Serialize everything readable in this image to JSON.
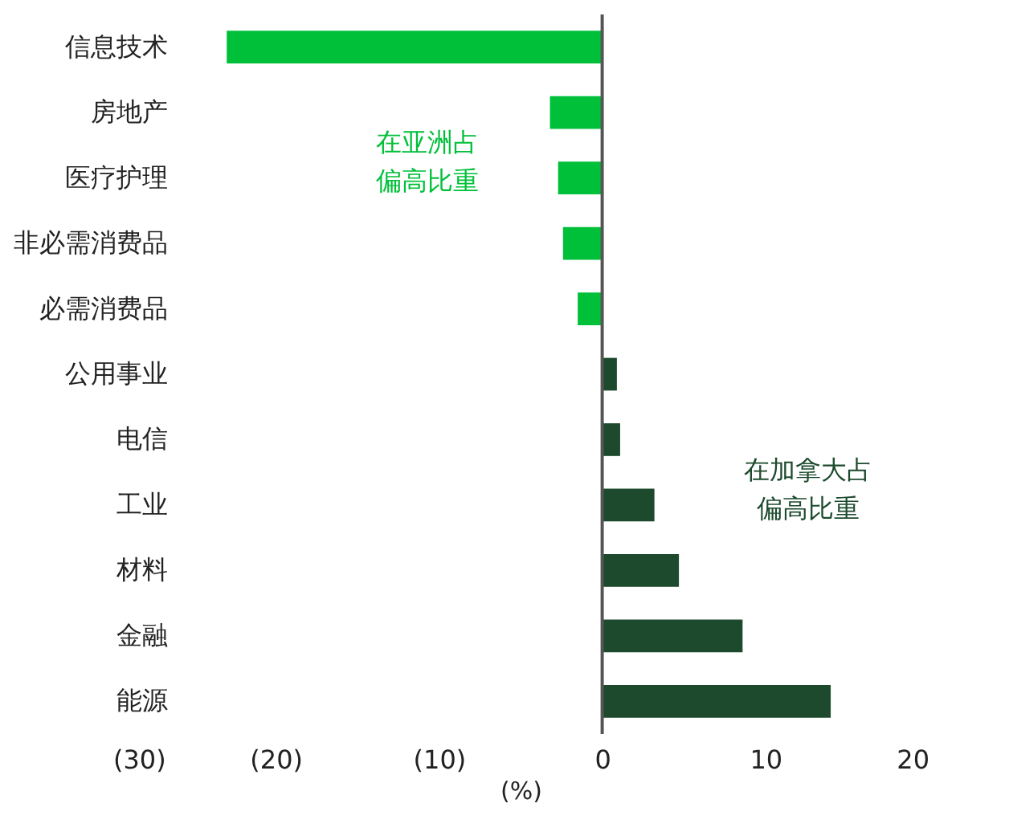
{
  "chart_data": {
    "type": "bar",
    "orientation": "horizontal",
    "xlabel": "(%)",
    "categories": [
      "信息技术",
      "房地产",
      "医疗护理",
      "非必需消费品",
      "必需消费品",
      "公用事业",
      "电信",
      "工业",
      "材料",
      "金融",
      "能源"
    ],
    "values": [
      -23,
      -3.2,
      -2.7,
      -2.4,
      -1.5,
      0.9,
      1.1,
      3.2,
      4.7,
      8.6,
      14.0
    ],
    "colors": [
      "#00c03a",
      "#00c03a",
      "#00c03a",
      "#00c03a",
      "#00c03a",
      "#1d4a2d",
      "#1d4a2d",
      "#1d4a2d",
      "#1d4a2d",
      "#1d4a2d",
      "#1d4a2d"
    ],
    "xlim": [
      -30,
      20
    ],
    "xticks": [
      {
        "value": -30,
        "label": "(30)"
      },
      {
        "value": -20,
        "label": "(20)"
      },
      {
        "value": -10,
        "label": "(10)"
      },
      0,
      10,
      20
    ],
    "ref_lines": [
      {
        "axis": "x",
        "value": 0,
        "color": "#555555"
      }
    ],
    "annotations": [
      "在亚洲占",
      "偏高比重",
      "在加拿大占",
      "偏高比重"
    ],
    "grid": false
  }
}
